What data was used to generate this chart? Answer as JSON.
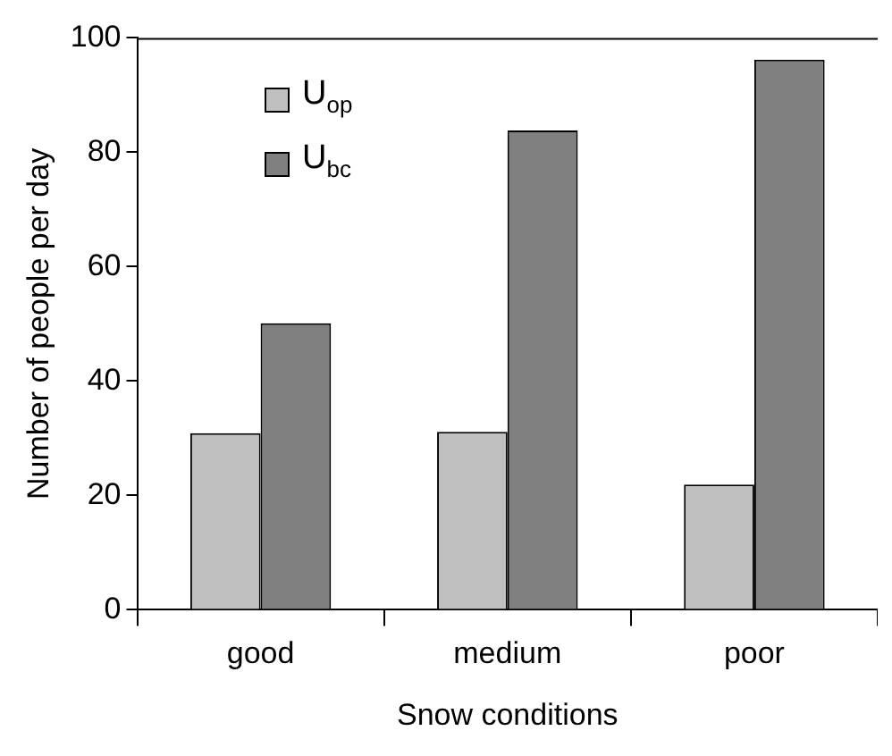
{
  "chart_data": {
    "type": "bar",
    "xlabel": "Snow conditions",
    "ylabel": "Number of people per day",
    "categories": [
      "good",
      "medium",
      "poor"
    ],
    "series": [
      {
        "name": "U$_{op}$",
        "color": "#c0c0c0",
        "values": [
          30.9,
          31.1,
          21.9
        ]
      },
      {
        "name": "U$_{bc}$",
        "color": "#808080",
        "values": [
          50.1,
          83.8,
          96.2
        ]
      }
    ],
    "ylim": [
      0,
      100
    ],
    "yticks": [
      0,
      20,
      40,
      60,
      80,
      100
    ],
    "grid": false,
    "legend": "top left"
  }
}
